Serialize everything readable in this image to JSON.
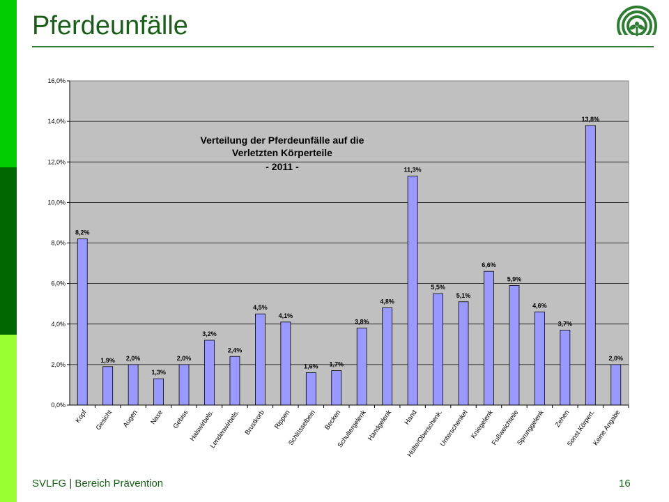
{
  "slide": {
    "title": "Pferdeunfälle",
    "footer_left": "SVLFG | Bereich Prävention",
    "page_number": "16",
    "colors": {
      "sidebar_top": "#00cc00",
      "sidebar_middle": "#006600",
      "sidebar_bottom": "#99ff33",
      "title": "#1a5e1a",
      "rule": "#2e7d32"
    }
  },
  "chart_data": {
    "type": "bar",
    "title_lines": [
      "Verteilung der Pferdeunfälle auf die",
      "Verletzten Körperteile",
      "- 2011 -"
    ],
    "categories": [
      "Kopf",
      "Gesicht",
      "Augen",
      "Nase",
      "Gebiss",
      "Halswirbels.",
      "Lendenwirbels.",
      "Brustkorb",
      "Rippen",
      "Schlüsselbein",
      "Becken",
      "Schultergelenk",
      "Handgelenk",
      "Hand",
      "Hüfte/Oberschenk.",
      "Unterschenkel",
      "Kniegelenk",
      "Fußweichteile",
      "Sprunggelenk",
      "Zehen",
      "Sonst.Körpert.",
      "Keine Angabe"
    ],
    "values": [
      8.2,
      1.9,
      2.0,
      1.3,
      2.0,
      3.2,
      2.4,
      4.5,
      4.1,
      1.6,
      1.7,
      3.8,
      4.8,
      11.3,
      5.5,
      5.1,
      6.6,
      5.9,
      4.6,
      3.7,
      13.8,
      2.0
    ],
    "data_labels": [
      "8,2%",
      "1,9%",
      "2,0%",
      "1,3%",
      "2,0%",
      "3,2%",
      "2,4%",
      "4,5%",
      "4,1%",
      "1,6%",
      "1,7%",
      "3,8%",
      "4,8%",
      "11,3%",
      "5,5%",
      "5,1%",
      "6,6%",
      "5,9%",
      "4,6%",
      "3,7%",
      "13,8%",
      "2,0%"
    ],
    "ylim": [
      0,
      16
    ],
    "yticks": [
      0,
      2,
      4,
      6,
      8,
      10,
      12,
      14,
      16
    ],
    "ytick_labels": [
      "0,0%",
      "2,0%",
      "4,0%",
      "6,0%",
      "8,0%",
      "10,0%",
      "12,0%",
      "14,0%",
      "16,0%"
    ],
    "grid": true,
    "colors": {
      "bar": "#9999ff",
      "plot_bg": "#c0c0c0",
      "bar_border": "#000000"
    }
  }
}
